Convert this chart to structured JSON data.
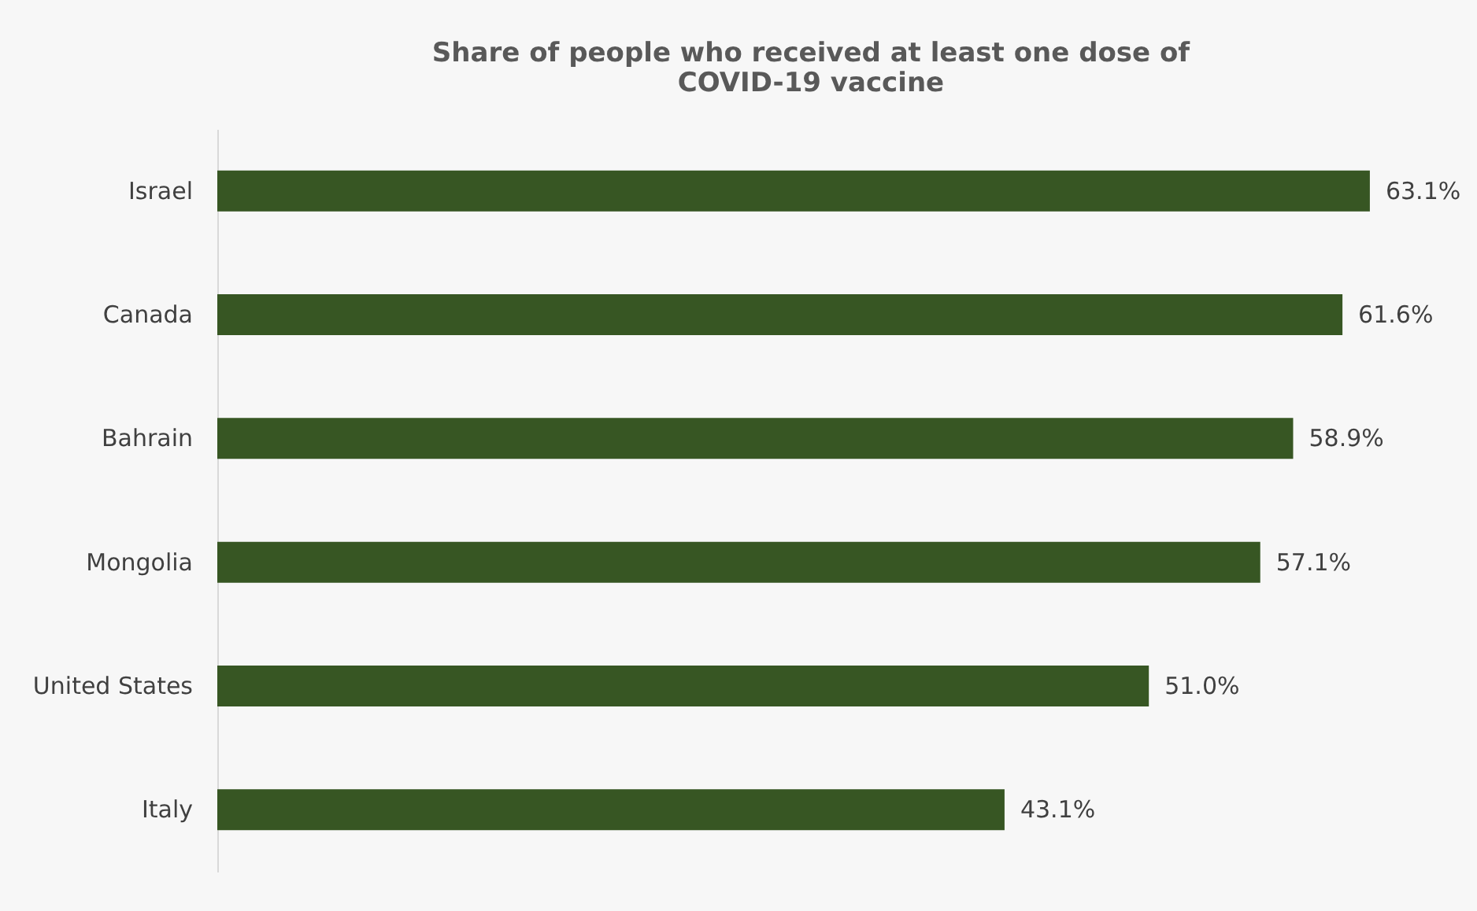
{
  "chart_data": {
    "type": "bar",
    "orientation": "horizontal",
    "title": "Share of people who received at least one dose of COVID-19 vaccine",
    "categories": [
      "Israel",
      "Canada",
      "Bahrain",
      "Mongolia",
      "United States",
      "Italy"
    ],
    "values": [
      63.1,
      61.6,
      58.9,
      57.1,
      51.0,
      43.1
    ],
    "value_labels": [
      "63.1%",
      "61.6%",
      "58.9%",
      "57.1%",
      "51.0%",
      "43.1%"
    ],
    "color": "#375623",
    "tick_labels": "y"
  }
}
